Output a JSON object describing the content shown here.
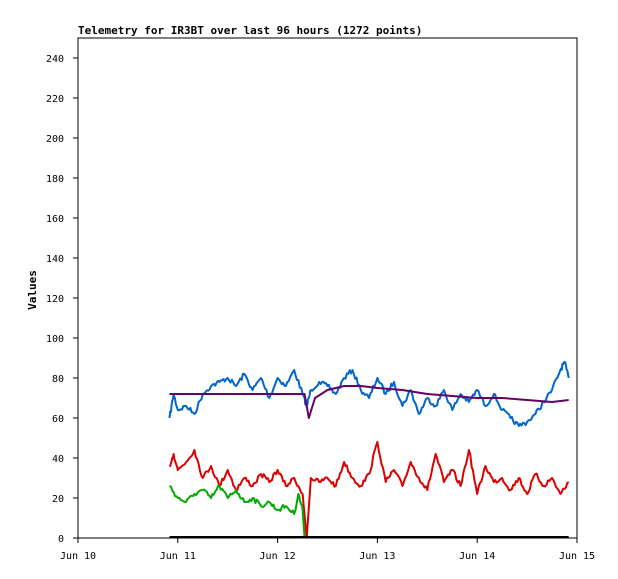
{
  "chart_data": {
    "type": "line",
    "title": "Telemetry for IR3BT over last 96 hours (1272 points)",
    "xlabel": "",
    "ylabel": "Values",
    "xlim": [
      "Jun 10",
      "Jun 15"
    ],
    "ylim": [
      0,
      250
    ],
    "x_ticks": [
      "Jun 10",
      "Jun 11",
      "Jun 12",
      "Jun 13",
      "Jun 14",
      "Jun 15"
    ],
    "y_ticks": [
      0,
      20,
      40,
      60,
      80,
      100,
      120,
      140,
      160,
      180,
      200,
      220,
      240
    ],
    "grid": false,
    "series": [
      {
        "color": "#0066cc",
        "x": [
          "2024-06-10 22:00",
          "2024-06-10 23:00",
          "2024-06-11 00:00",
          "2024-06-11 02:00",
          "2024-06-11 04:00",
          "2024-06-11 06:00",
          "2024-06-11 08:00",
          "2024-06-11 10:00",
          "2024-06-11 12:00",
          "2024-06-11 14:00",
          "2024-06-11 16:00",
          "2024-06-11 18:00",
          "2024-06-11 20:00",
          "2024-06-11 22:00",
          "2024-06-12 00:00",
          "2024-06-12 02:00",
          "2024-06-12 04:00",
          "2024-06-12 06:00",
          "2024-06-12 07:00",
          "2024-06-12 08:00",
          "2024-06-12 10:00",
          "2024-06-12 12:00",
          "2024-06-12 14:00",
          "2024-06-12 16:00",
          "2024-06-12 18:00",
          "2024-06-12 20:00",
          "2024-06-12 22:00",
          "2024-06-13 00:00",
          "2024-06-13 02:00",
          "2024-06-13 04:00",
          "2024-06-13 06:00",
          "2024-06-13 08:00",
          "2024-06-13 10:00",
          "2024-06-13 12:00",
          "2024-06-13 14:00",
          "2024-06-13 16:00",
          "2024-06-13 18:00",
          "2024-06-13 20:00",
          "2024-06-13 22:00",
          "2024-06-14 00:00",
          "2024-06-14 02:00",
          "2024-06-14 04:00",
          "2024-06-14 06:00",
          "2024-06-14 08:00",
          "2024-06-14 10:00",
          "2024-06-14 12:00",
          "2024-06-14 14:00",
          "2024-06-14 16:00",
          "2024-06-14 18:00",
          "2024-06-14 20:00",
          "2024-06-14 21:00",
          "2024-06-14 22:00"
        ],
        "y": [
          60,
          72,
          64,
          66,
          62,
          72,
          76,
          78,
          80,
          76,
          82,
          74,
          80,
          70,
          80,
          76,
          84,
          72,
          66,
          74,
          78,
          76,
          72,
          80,
          84,
          74,
          70,
          80,
          72,
          78,
          66,
          74,
          62,
          70,
          66,
          74,
          64,
          72,
          68,
          74,
          66,
          72,
          64,
          60,
          56,
          58,
          62,
          68,
          74,
          84,
          88,
          80
        ]
      },
      {
        "color": "#660066",
        "x": [
          "2024-06-10 22:00",
          "2024-06-11 00:00",
          "2024-06-11 12:00",
          "2024-06-12 00:00",
          "2024-06-12 06:00",
          "2024-06-12 06:30",
          "2024-06-12 07:30",
          "2024-06-12 09:00",
          "2024-06-12 12:00",
          "2024-06-12 16:00",
          "2024-06-12 20:00",
          "2024-06-13 00:00",
          "2024-06-13 06:00",
          "2024-06-13 12:00",
          "2024-06-13 18:00",
          "2024-06-14 00:00",
          "2024-06-14 06:00",
          "2024-06-14 12:00",
          "2024-06-14 18:00",
          "2024-06-14 22:00"
        ],
        "y": [
          72,
          72,
          72,
          72,
          72,
          72,
          60,
          70,
          74,
          76,
          76,
          75,
          74,
          72,
          71,
          70,
          70,
          69,
          68,
          69
        ]
      },
      {
        "color": "#dd0000",
        "x": [
          "2024-06-10 22:00",
          "2024-06-10 23:00",
          "2024-06-11 00:00",
          "2024-06-11 02:00",
          "2024-06-11 04:00",
          "2024-06-11 06:00",
          "2024-06-11 08:00",
          "2024-06-11 10:00",
          "2024-06-11 12:00",
          "2024-06-11 14:00",
          "2024-06-11 16:00",
          "2024-06-11 18:00",
          "2024-06-11 20:00",
          "2024-06-11 22:00",
          "2024-06-12 00:00",
          "2024-06-12 02:00",
          "2024-06-12 04:00",
          "2024-06-12 06:00",
          "2024-06-12 07:00",
          "2024-06-12 08:00",
          "2024-06-12 10:00",
          "2024-06-12 12:00",
          "2024-06-12 14:00",
          "2024-06-12 16:00",
          "2024-06-12 18:00",
          "2024-06-12 20:00",
          "2024-06-12 22:00",
          "2024-06-13 00:00",
          "2024-06-13 02:00",
          "2024-06-13 04:00",
          "2024-06-13 06:00",
          "2024-06-13 08:00",
          "2024-06-13 10:00",
          "2024-06-13 12:00",
          "2024-06-13 14:00",
          "2024-06-13 16:00",
          "2024-06-13 18:00",
          "2024-06-13 20:00",
          "2024-06-13 22:00",
          "2024-06-14 00:00",
          "2024-06-14 02:00",
          "2024-06-14 04:00",
          "2024-06-14 06:00",
          "2024-06-14 08:00",
          "2024-06-14 10:00",
          "2024-06-14 12:00",
          "2024-06-14 14:00",
          "2024-06-14 16:00",
          "2024-06-14 18:00",
          "2024-06-14 20:00",
          "2024-06-14 22:00"
        ],
        "y": [
          36,
          42,
          34,
          38,
          44,
          30,
          36,
          26,
          34,
          24,
          30,
          26,
          32,
          28,
          34,
          26,
          30,
          22,
          0,
          30,
          28,
          30,
          26,
          38,
          30,
          26,
          32,
          48,
          28,
          34,
          26,
          38,
          30,
          24,
          42,
          28,
          34,
          26,
          44,
          22,
          36,
          28,
          30,
          24,
          30,
          22,
          32,
          26,
          30,
          22,
          28
        ]
      },
      {
        "color": "#00aa00",
        "x": [
          "2024-06-10 22:00",
          "2024-06-11 00:00",
          "2024-06-11 02:00",
          "2024-06-11 04:00",
          "2024-06-11 06:00",
          "2024-06-11 08:00",
          "2024-06-11 10:00",
          "2024-06-11 12:00",
          "2024-06-11 14:00",
          "2024-06-11 16:00",
          "2024-06-11 18:00",
          "2024-06-11 20:00",
          "2024-06-11 22:00",
          "2024-06-12 00:00",
          "2024-06-12 02:00",
          "2024-06-12 04:00",
          "2024-06-12 05:00",
          "2024-06-12 06:00",
          "2024-06-12 06:30"
        ],
        "y": [
          26,
          20,
          18,
          22,
          24,
          20,
          26,
          20,
          24,
          18,
          20,
          16,
          18,
          14,
          16,
          12,
          22,
          14,
          0
        ]
      }
    ]
  }
}
